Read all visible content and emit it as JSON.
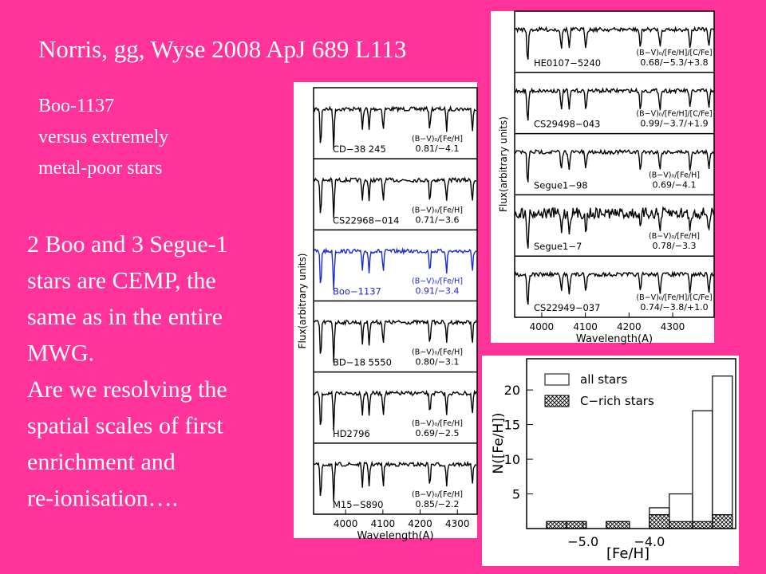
{
  "title": "Norris, gg, Wyse 2008 ApJ 689 L113",
  "subtitle": [
    "Boo-1137",
    "versus extremely",
    "metal-poor stars"
  ],
  "body": [
    "2 Boo and 3 Segue-1",
    "stars are CEMP, the",
    "same as in the entire",
    "MWG.",
    "Are we resolving the",
    "spatial scales of first",
    "enrichment and",
    "re-ionisation…."
  ],
  "left_panel": {
    "xlabel": "Wavelength(A)",
    "ylabel": "Flux(arbitrary units)",
    "xlim": [
      3914,
      4353
    ],
    "xticks": [
      4000,
      4100,
      4200,
      4300
    ],
    "stars": [
      {
        "name": "CD−38 245",
        "params_label": "(B−V)₀/[Fe/H]",
        "params": "0.81/−4.1",
        "color": "#000000"
      },
      {
        "name": "CS22968−014",
        "params_label": "(B−V)₀/[Fe/H]",
        "params": "0.71/−3.6",
        "color": "#000000"
      },
      {
        "name": "Boo−1137",
        "params_label": "(B−V)₀/[Fe/H]",
        "params": "0.91/−3.4",
        "color": "#1a2ad6"
      },
      {
        "name": "BD−18 5550",
        "params_label": "(B−V)₀/[Fe/H]",
        "params": "0.80/−3.1",
        "color": "#000000"
      },
      {
        "name": "HD2796",
        "params_label": "(B−V)₀/[Fe/H]",
        "params": "0.69/−2.5",
        "color": "#000000"
      },
      {
        "name": "M15−S890",
        "params_label": "(B−V)₀/[Fe/H]",
        "params": "0.85/−2.2",
        "color": "#000000"
      }
    ]
  },
  "right_panel": {
    "xlabel": "Wavelength(A)",
    "ylabel": "Flux(arbitrary units)",
    "xlim": [
      3938,
      4395
    ],
    "xticks": [
      4000,
      4100,
      4200,
      4300
    ],
    "stars": [
      {
        "name": "HE0107−5240",
        "params_label": "(B−V)₀/[Fe/H]/[C/Fe]",
        "params": "0.68/−5.3/+3.8",
        "color": "#000000"
      },
      {
        "name": "CS29498−043",
        "params_label": "(B−V)₀/[Fe/H]/[C/Fe]",
        "params": "0.99/−3.7/+1.9",
        "color": "#000000"
      },
      {
        "name": "Segue1−98",
        "params_label": "(B−V)₀/[Fe/H]",
        "params": "0.69/−4.1",
        "color": "#000000"
      },
      {
        "name": "Segue1−7",
        "params_label": "(B−V)₀/[Fe/H]",
        "params": "0.78/−3.3",
        "color": "#000000"
      },
      {
        "name": "CS22949−037",
        "params_label": "(B−V)₀/[Fe/H]/[C/Fe]",
        "params": "0.74/−3.8/+1.0",
        "color": "#000000"
      }
    ]
  },
  "histogram": {
    "xlabel": "[Fe/H]",
    "ylabel": "N([Fe/H])",
    "xlim": [
      -5.85,
      -2.7
    ],
    "ylim": [
      0,
      24.5
    ],
    "xticks": [
      {
        "value": -5.0,
        "label": "−5.0"
      },
      {
        "value": -4.0,
        "label": "−4.0"
      }
    ],
    "yticks": [
      5,
      10,
      15,
      20
    ],
    "bins": [
      -5.55,
      -5.25,
      -4.95,
      -4.65,
      -4.3,
      -4.0,
      -3.7,
      -3.35,
      -3.05,
      -2.75
    ],
    "series": [
      {
        "name": "all stars",
        "values": [
          1,
          1,
          0,
          1,
          0,
          3,
          5,
          17,
          22
        ]
      },
      {
        "name": "C−rich stars",
        "values": [
          1,
          1,
          0,
          1,
          0,
          2,
          1,
          1,
          2
        ]
      }
    ]
  }
}
